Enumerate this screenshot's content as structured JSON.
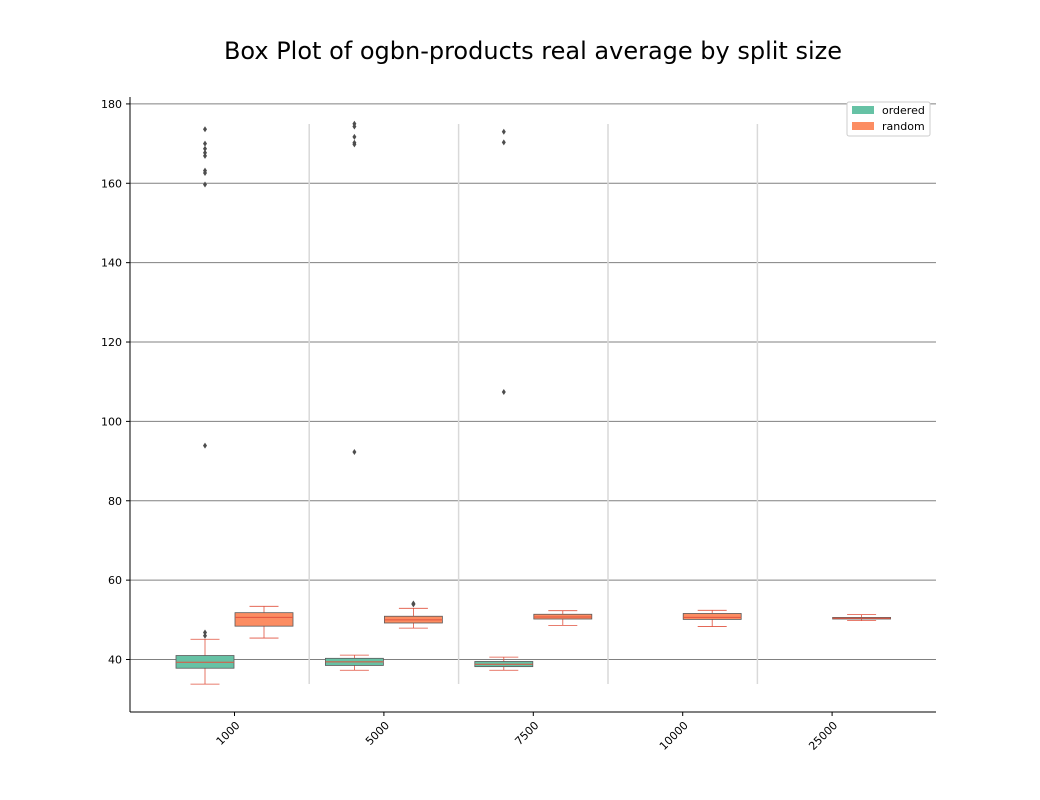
{
  "chart_data": {
    "type": "box",
    "title": "Box Plot of ogbn-products real average by split size",
    "xlabel": "",
    "ylabel": "",
    "categories": [
      "1000",
      "5000",
      "7500",
      "10000",
      "25000"
    ],
    "ylim": [
      27,
      182
    ],
    "yticks": [
      40,
      60,
      80,
      100,
      120,
      140,
      160,
      180
    ],
    "grid": "horizontal",
    "legend_position": "top-right",
    "series": [
      {
        "name": "ordered",
        "color": "#66c2a5",
        "boxes": [
          {
            "category": "1000",
            "whisker_low": 33.8,
            "q1": 37.8,
            "median": 39.3,
            "q3": 41.0,
            "whisker_high": 45.1,
            "outliers": [
              46.0,
              46.8,
              93.9,
              159.7,
              162.6,
              163.2,
              166.9,
              167.7,
              168.7,
              170.0,
              173.6
            ]
          },
          {
            "category": "5000",
            "whisker_low": 37.3,
            "q1": 38.5,
            "median": 39.4,
            "q3": 40.3,
            "whisker_high": 41.1,
            "outliers": [
              92.3,
              169.8,
              170.2,
              171.7,
              174.3,
              175.0
            ]
          },
          {
            "category": "7500",
            "whisker_low": 37.3,
            "q1": 38.2,
            "median": 38.8,
            "q3": 39.5,
            "whisker_high": 40.6,
            "outliers": [
              107.4,
              170.3,
              173.0
            ]
          }
        ]
      },
      {
        "name": "random",
        "color": "#fc8d62",
        "boxes": [
          {
            "category": "1000",
            "whisker_low": 45.4,
            "q1": 48.4,
            "median": 50.6,
            "q3": 51.8,
            "whisker_high": 53.4,
            "outliers": []
          },
          {
            "category": "5000",
            "whisker_low": 47.9,
            "q1": 49.2,
            "median": 50.0,
            "q3": 50.9,
            "whisker_high": 52.9,
            "outliers": [
              53.9,
              54.1
            ]
          },
          {
            "category": "7500",
            "whisker_low": 48.6,
            "q1": 50.2,
            "median": 50.7,
            "q3": 51.4,
            "whisker_high": 52.3,
            "outliers": []
          },
          {
            "category": "10000",
            "whisker_low": 48.3,
            "q1": 50.1,
            "median": 50.6,
            "q3": 51.6,
            "whisker_high": 52.4,
            "outliers": []
          },
          {
            "category": "25000",
            "whisker_low": 49.8,
            "q1": 50.2,
            "median": 50.4,
            "q3": 50.6,
            "whisker_high": 51.3,
            "outliers": []
          }
        ]
      }
    ]
  }
}
